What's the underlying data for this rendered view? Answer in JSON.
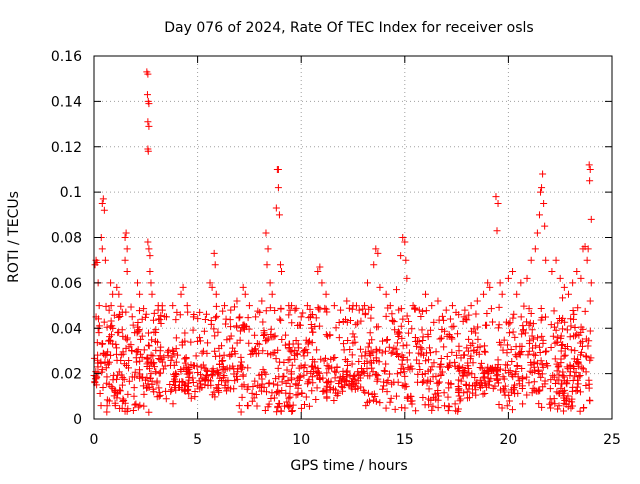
{
  "chart_data": {
    "type": "scatter",
    "title": "Day 076 of 2024, Rate Of TEC Index for receiver osls",
    "xlabel": "GPS time / hours",
    "ylabel": "ROTI / TECUs",
    "xlim": [
      0,
      25
    ],
    "ylim": [
      0,
      0.16
    ],
    "x_ticks": [
      {
        "value": 0,
        "label": "0"
      },
      {
        "value": 5,
        "label": "5"
      },
      {
        "value": 10,
        "label": "10"
      },
      {
        "value": 15,
        "label": "15"
      },
      {
        "value": 20,
        "label": "20"
      },
      {
        "value": 25,
        "label": "25"
      }
    ],
    "y_ticks": [
      {
        "value": 0,
        "label": "0"
      },
      {
        "value": 0.02,
        "label": "0.02"
      },
      {
        "value": 0.04,
        "label": "0.04"
      },
      {
        "value": 0.06,
        "label": "0.06"
      },
      {
        "value": 0.08,
        "label": "0.08"
      },
      {
        "value": 0.1,
        "label": "0.1"
      },
      {
        "value": 0.12,
        "label": "0.12"
      },
      {
        "value": 0.14,
        "label": "0.14"
      },
      {
        "value": 0.16,
        "label": "0.16"
      }
    ],
    "grid": true,
    "marker": "+",
    "series": [
      {
        "name": "ROTI",
        "color": "#ff0000",
        "points": [
          [
            0.05,
            0.068
          ],
          [
            0.1,
            0.07
          ],
          [
            0.15,
            0.069
          ],
          [
            0.2,
            0.06
          ],
          [
            0.25,
            0.05
          ],
          [
            0.1,
            0.045
          ],
          [
            0.2,
            0.04
          ],
          [
            0.35,
            0.08
          ],
          [
            0.4,
            0.075
          ],
          [
            0.4,
            0.095
          ],
          [
            0.45,
            0.097
          ],
          [
            0.5,
            0.092
          ],
          [
            0.55,
            0.07
          ],
          [
            0.8,
            0.06
          ],
          [
            0.9,
            0.055
          ],
          [
            1.1,
            0.058
          ],
          [
            1.2,
            0.055
          ],
          [
            1.5,
            0.08
          ],
          [
            1.55,
            0.082
          ],
          [
            1.6,
            0.075
          ],
          [
            1.5,
            0.07
          ],
          [
            1.6,
            0.065
          ],
          [
            2.1,
            0.06
          ],
          [
            2.2,
            0.055
          ],
          [
            2.55,
            0.153
          ],
          [
            2.6,
            0.152
          ],
          [
            2.58,
            0.143
          ],
          [
            2.62,
            0.14
          ],
          [
            2.65,
            0.139
          ],
          [
            2.6,
            0.131
          ],
          [
            2.65,
            0.129
          ],
          [
            2.62,
            0.118
          ],
          [
            2.6,
            0.119
          ],
          [
            2.6,
            0.078
          ],
          [
            2.65,
            0.075
          ],
          [
            2.7,
            0.072
          ],
          [
            2.7,
            0.065
          ],
          [
            2.75,
            0.06
          ],
          [
            2.8,
            0.055
          ],
          [
            3.1,
            0.05
          ],
          [
            3.3,
            0.048
          ],
          [
            3.5,
            0.045
          ],
          [
            3.8,
            0.05
          ],
          [
            4.0,
            0.047
          ],
          [
            4.2,
            0.055
          ],
          [
            4.3,
            0.058
          ],
          [
            4.5,
            0.05
          ],
          [
            4.8,
            0.045
          ],
          [
            5.1,
            0.047
          ],
          [
            5.6,
            0.06
          ],
          [
            5.7,
            0.058
          ],
          [
            5.8,
            0.073
          ],
          [
            5.85,
            0.068
          ],
          [
            5.9,
            0.055
          ],
          [
            6.3,
            0.05
          ],
          [
            6.6,
            0.048
          ],
          [
            6.9,
            0.052
          ],
          [
            7.2,
            0.058
          ],
          [
            7.3,
            0.055
          ],
          [
            7.5,
            0.05
          ],
          [
            7.8,
            0.045
          ],
          [
            8.1,
            0.052
          ],
          [
            8.3,
            0.082
          ],
          [
            8.4,
            0.075
          ],
          [
            8.35,
            0.068
          ],
          [
            8.5,
            0.06
          ],
          [
            8.6,
            0.055
          ],
          [
            8.8,
            0.093
          ],
          [
            8.9,
            0.11
          ],
          [
            8.85,
            0.11
          ],
          [
            8.9,
            0.102
          ],
          [
            8.95,
            0.09
          ],
          [
            9.0,
            0.068
          ],
          [
            9.05,
            0.065
          ],
          [
            9.4,
            0.05
          ],
          [
            9.7,
            0.048
          ],
          [
            10.0,
            0.045
          ],
          [
            10.3,
            0.05
          ],
          [
            10.8,
            0.065
          ],
          [
            10.9,
            0.067
          ],
          [
            11.0,
            0.06
          ],
          [
            11.2,
            0.055
          ],
          [
            11.6,
            0.05
          ],
          [
            11.9,
            0.048
          ],
          [
            12.2,
            0.052
          ],
          [
            12.5,
            0.05
          ],
          [
            12.8,
            0.048
          ],
          [
            13.2,
            0.06
          ],
          [
            13.5,
            0.068
          ],
          [
            13.6,
            0.075
          ],
          [
            13.7,
            0.073
          ],
          [
            13.8,
            0.058
          ],
          [
            14.1,
            0.055
          ],
          [
            14.3,
            0.05
          ],
          [
            14.6,
            0.057
          ],
          [
            14.8,
            0.072
          ],
          [
            14.9,
            0.08
          ],
          [
            15.0,
            0.078
          ],
          [
            15.05,
            0.07
          ],
          [
            15.1,
            0.062
          ],
          [
            15.4,
            0.05
          ],
          [
            15.7,
            0.048
          ],
          [
            16.0,
            0.055
          ],
          [
            16.3,
            0.05
          ],
          [
            16.6,
            0.052
          ],
          [
            17.0,
            0.048
          ],
          [
            17.3,
            0.05
          ],
          [
            17.6,
            0.046
          ],
          [
            17.9,
            0.048
          ],
          [
            18.2,
            0.05
          ],
          [
            18.5,
            0.052
          ],
          [
            18.8,
            0.055
          ],
          [
            19.0,
            0.06
          ],
          [
            19.1,
            0.058
          ],
          [
            19.4,
            0.098
          ],
          [
            19.5,
            0.095
          ],
          [
            19.45,
            0.083
          ],
          [
            19.6,
            0.06
          ],
          [
            19.7,
            0.055
          ],
          [
            20.0,
            0.062
          ],
          [
            20.2,
            0.065
          ],
          [
            20.4,
            0.055
          ],
          [
            20.6,
            0.06
          ],
          [
            20.9,
            0.062
          ],
          [
            21.1,
            0.07
          ],
          [
            21.3,
            0.075
          ],
          [
            21.4,
            0.082
          ],
          [
            21.5,
            0.09
          ],
          [
            21.55,
            0.1
          ],
          [
            21.6,
            0.102
          ],
          [
            21.65,
            0.108
          ],
          [
            21.7,
            0.095
          ],
          [
            21.75,
            0.085
          ],
          [
            21.8,
            0.07
          ],
          [
            22.1,
            0.065
          ],
          [
            22.3,
            0.07
          ],
          [
            22.5,
            0.062
          ],
          [
            22.7,
            0.058
          ],
          [
            22.9,
            0.055
          ],
          [
            23.1,
            0.06
          ],
          [
            23.3,
            0.065
          ],
          [
            23.5,
            0.062
          ],
          [
            23.6,
            0.075
          ],
          [
            23.7,
            0.076
          ],
          [
            23.8,
            0.07
          ],
          [
            23.85,
            0.075
          ],
          [
            23.9,
            0.112
          ],
          [
            23.95,
            0.11
          ],
          [
            23.92,
            0.105
          ],
          [
            24.0,
            0.088
          ],
          [
            24.0,
            0.06
          ],
          [
            23.95,
            0.052
          ]
        ]
      }
    ],
    "noise_band": {
      "floor": 0.003,
      "base": 0.019,
      "spread": 0.02,
      "density": 1100
    }
  }
}
